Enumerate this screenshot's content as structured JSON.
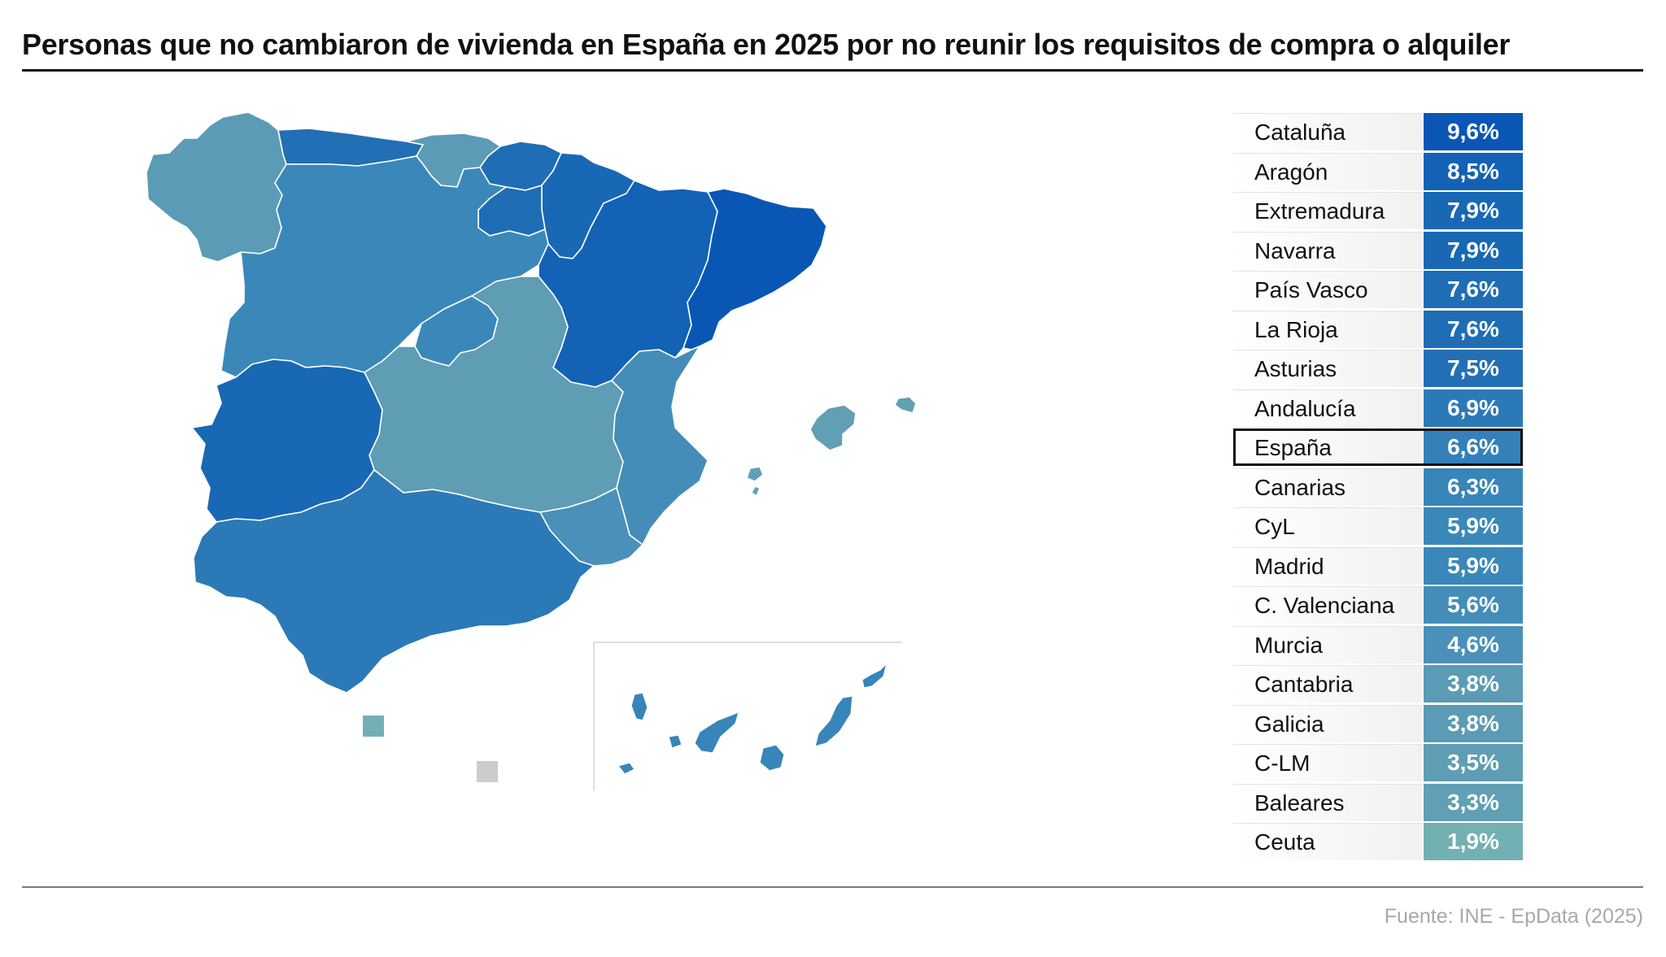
{
  "title": "Personas que no cambiaron de vivienda en España en 2025 por no reunir los requisitos de compra o alquiler",
  "source": "Fuente: INE - EpData (2025)",
  "colors": {
    "c96": "#0a56b4",
    "c85": "#1362b5",
    "c79": "#1868b5",
    "c76": "#1f6db5",
    "c75": "#226fb5",
    "c69": "#2c79b7",
    "c66": "#3480b9",
    "c63": "#3785b9",
    "c59": "#3a88ba",
    "c56": "#448db8",
    "c46": "#4a90b8",
    "c38": "#5b9bb5",
    "c35": "#5e9db4",
    "c33": "#619fb4",
    "c19": "#73b0b3",
    "nodata": "#cccccc"
  },
  "ranking": [
    {
      "name": "Cataluña",
      "value": "9,6%",
      "color": "#0a56b4"
    },
    {
      "name": "Aragón",
      "value": "8,5%",
      "color": "#1362b5"
    },
    {
      "name": "Extremadura",
      "value": "7,9%",
      "color": "#1868b5"
    },
    {
      "name": "Navarra",
      "value": "7,9%",
      "color": "#1868b5"
    },
    {
      "name": "País Vasco",
      "value": "7,6%",
      "color": "#1f6db5"
    },
    {
      "name": "La Rioja",
      "value": "7,6%",
      "color": "#1f6db5"
    },
    {
      "name": "Asturias",
      "value": "7,5%",
      "color": "#226fb5"
    },
    {
      "name": "Andalucía",
      "value": "6,9%",
      "color": "#2c79b7"
    },
    {
      "name": "España",
      "value": "6,6%",
      "color": "#3480b9",
      "highlight": true
    },
    {
      "name": "Canarias",
      "value": "6,3%",
      "color": "#3785b9"
    },
    {
      "name": "CyL",
      "value": "5,9%",
      "color": "#3a88ba"
    },
    {
      "name": "Madrid",
      "value": "5,9%",
      "color": "#3a88ba"
    },
    {
      "name": "C. Valenciana",
      "value": "5,6%",
      "color": "#448db8"
    },
    {
      "name": "Murcia",
      "value": "4,6%",
      "color": "#4a90b8"
    },
    {
      "name": "Cantabria",
      "value": "3,8%",
      "color": "#5b9bb5"
    },
    {
      "name": "Galicia",
      "value": "3,8%",
      "color": "#5b9bb5"
    },
    {
      "name": "C-LM",
      "value": "3,5%",
      "color": "#5e9db4"
    },
    {
      "name": "Baleares",
      "value": "3,3%",
      "color": "#619fb4"
    },
    {
      "name": "Ceuta",
      "value": "1,9%",
      "color": "#73b0b3"
    }
  ]
}
